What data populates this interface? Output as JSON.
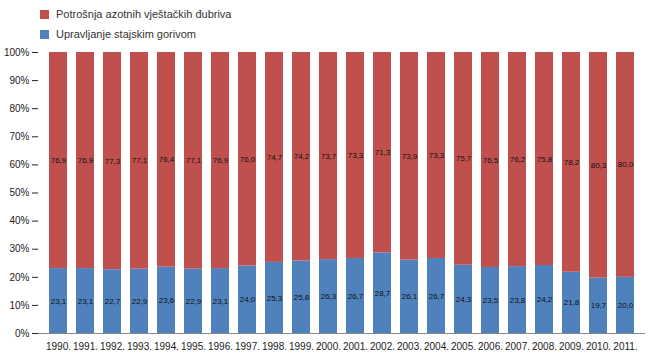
{
  "chart_data": {
    "type": "bar",
    "stacked": true,
    "data_labels": true,
    "grid": false,
    "legend": "top-left",
    "categories": [
      "1990.",
      "1991.",
      "1992.",
      "1993.",
      "1994.",
      "1995.",
      "1996.",
      "1997.",
      "1998.",
      "1999.",
      "2000.",
      "2001.",
      "2002.",
      "2003.",
      "2004.",
      "2005.",
      "2006.",
      "2007.",
      "2008.",
      "2009.",
      "2010.",
      "2011."
    ],
    "ylim": [
      0,
      100
    ],
    "yticks": [
      {
        "value": 0,
        "label": "0%"
      },
      {
        "value": 10,
        "label": "10%"
      },
      {
        "value": 20,
        "label": "20%"
      },
      {
        "value": 30,
        "label": "30%"
      },
      {
        "value": 40,
        "label": "40%"
      },
      {
        "value": 50,
        "label": "50%"
      },
      {
        "value": 60,
        "label": "60%"
      },
      {
        "value": 70,
        "label": "70%"
      },
      {
        "value": 80,
        "label": "80%"
      },
      {
        "value": 90,
        "label": "90%"
      },
      {
        "value": 100,
        "label": "100%"
      }
    ],
    "series": [
      {
        "name": "Potrošnja azotnih vještačkih đubriva",
        "color": "#c0504d",
        "values": [
          76.9,
          76.9,
          77.3,
          77.1,
          76.4,
          77.1,
          76.9,
          76.0,
          74.7,
          74.2,
          73.7,
          73.3,
          71.3,
          73.9,
          73.3,
          75.7,
          76.5,
          76.2,
          75.8,
          78.2,
          80.3,
          80.0
        ],
        "value_labels": [
          "76,9",
          "76,9",
          "77,3",
          "77,1",
          "76,4",
          "77,1",
          "76,9",
          "76,0",
          "74,7",
          "74,2",
          "73,7",
          "73,3",
          "71,3",
          "73,9",
          "73,3",
          "75,7",
          "76,5",
          "76,2",
          "75,8",
          "78,2",
          "80,3",
          "80,0"
        ]
      },
      {
        "name": "Upravljanje stajskim gorivom",
        "color": "#4f81bd",
        "values": [
          23.1,
          23.1,
          22.7,
          22.9,
          23.6,
          22.9,
          23.1,
          24.0,
          25.3,
          25.8,
          26.3,
          26.7,
          28.7,
          26.1,
          26.7,
          24.3,
          23.5,
          23.8,
          24.2,
          21.8,
          19.7,
          20.0
        ],
        "value_labels": [
          "23,1",
          "23,1",
          "22,7",
          "22,9",
          "23,6",
          "22,9",
          "23,1",
          "24,0",
          "25,3",
          "25,8",
          "26,3",
          "26,7",
          "28,7",
          "26,1",
          "26,7",
          "24,3",
          "23,5",
          "23,8",
          "24,2",
          "21,8",
          "19,7",
          "20,0"
        ]
      }
    ]
  }
}
